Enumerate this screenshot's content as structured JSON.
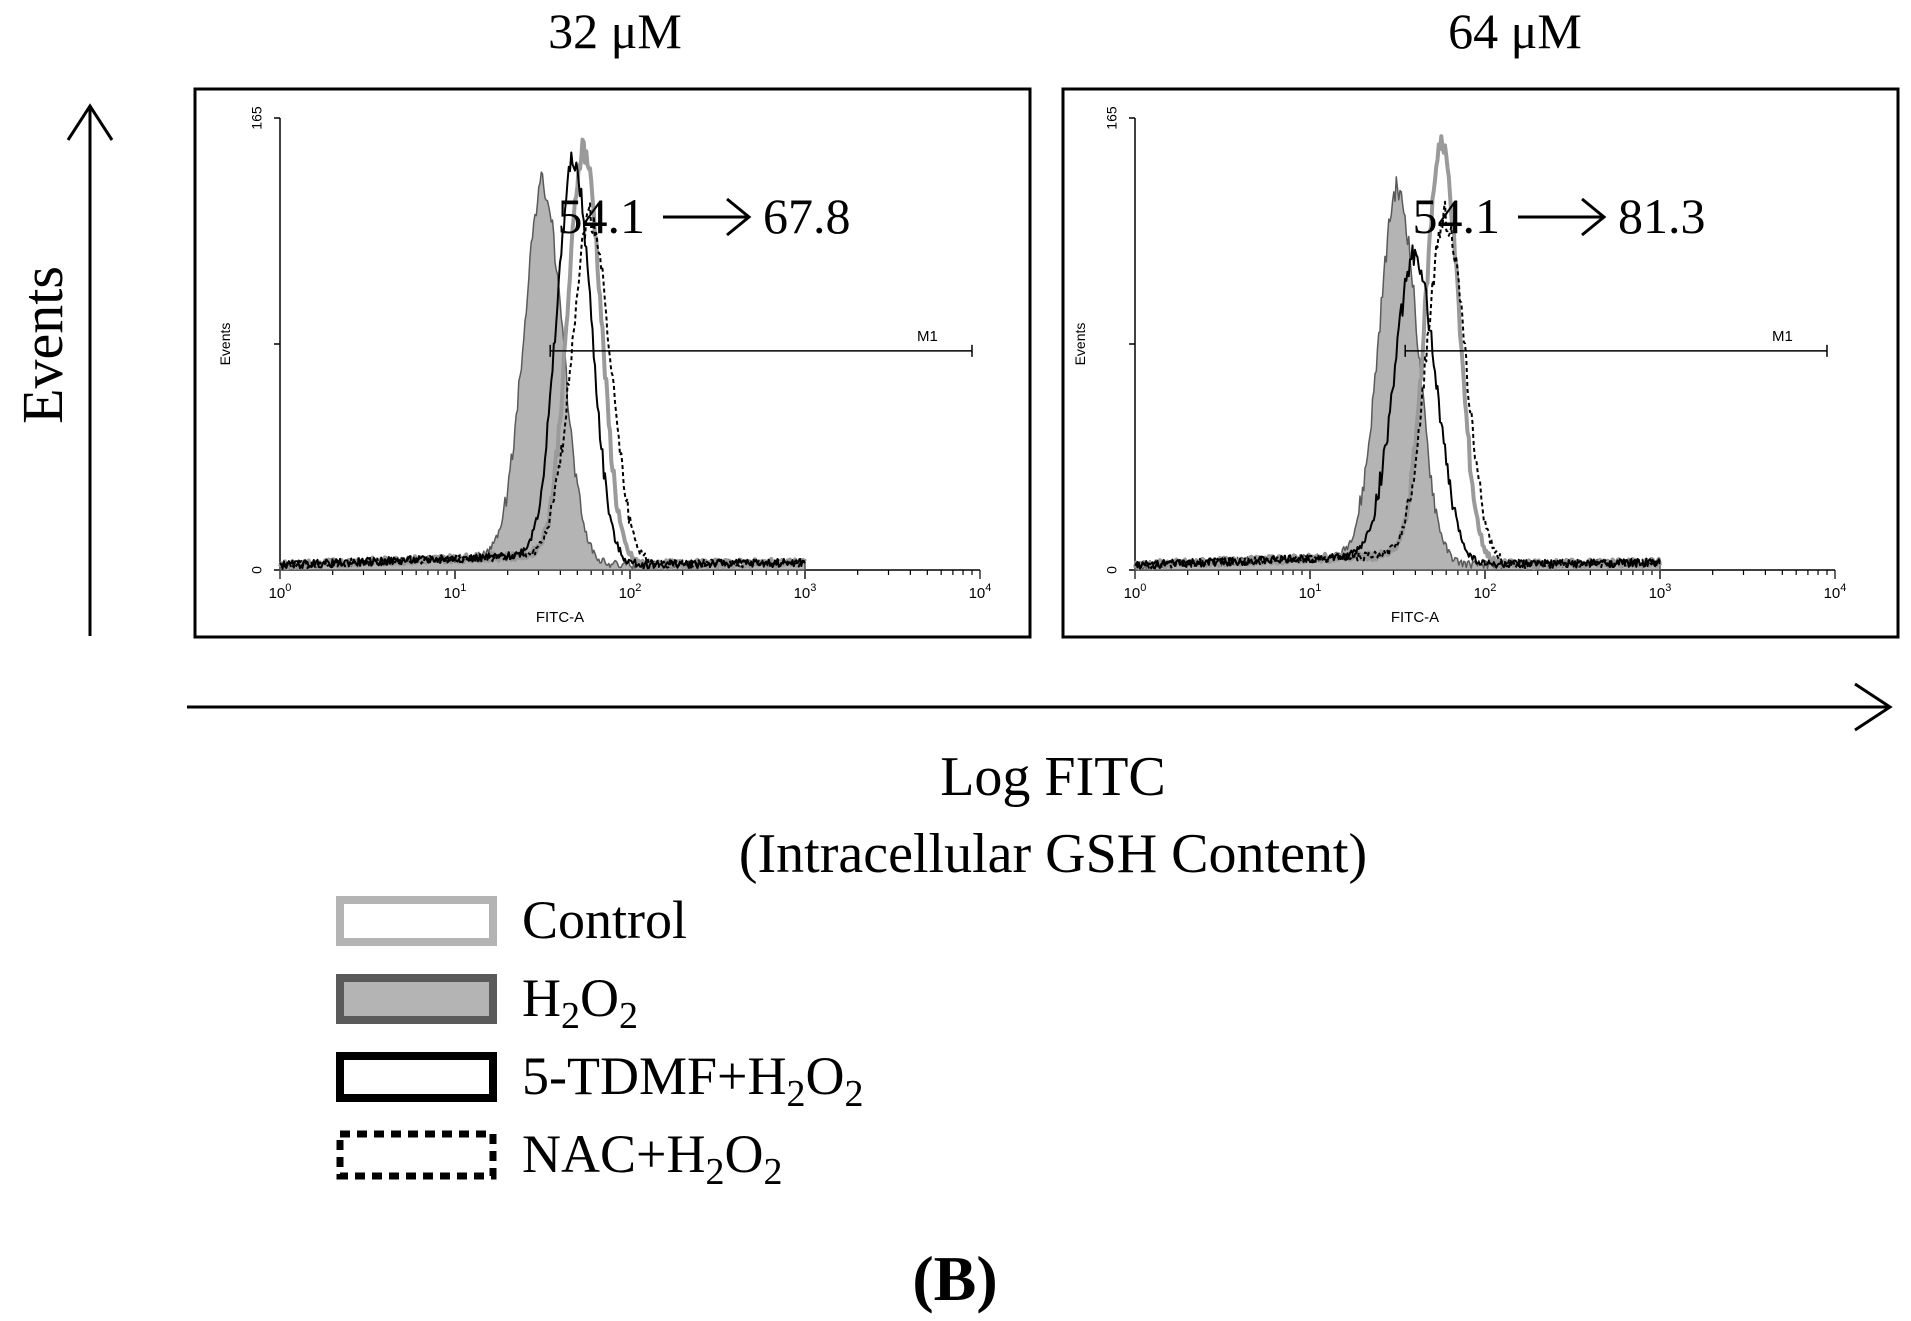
{
  "figure": {
    "panel_label": "(B)",
    "y_axis_label": "Events",
    "x_axis_label_line1": "Log FITC",
    "x_axis_label_line2": "(Intracellular GSH Content)"
  },
  "legend": [
    {
      "label": "Control",
      "fill": "#ffffff",
      "stroke": "#b4b4b4",
      "dash": false,
      "segments": [
        {
          "t": "Control",
          "sub": false
        }
      ]
    },
    {
      "label": "H2O2",
      "fill": "#b4b4b4",
      "stroke": "#5a5a5a",
      "dash": false,
      "segments": [
        {
          "t": "H",
          "sub": false
        },
        {
          "t": "2",
          "sub": true
        },
        {
          "t": "O",
          "sub": false
        },
        {
          "t": "2",
          "sub": true
        }
      ]
    },
    {
      "label": "5-TDMF+H2O2",
      "fill": "#ffffff",
      "stroke": "#000000",
      "dash": false,
      "segments": [
        {
          "t": "5-TDMF+H",
          "sub": false
        },
        {
          "t": "2",
          "sub": true
        },
        {
          "t": "O",
          "sub": false
        },
        {
          "t": "2",
          "sub": true
        }
      ]
    },
    {
      "label": "NAC+H2O2",
      "fill": "#ffffff",
      "stroke": "#000000",
      "dash": true,
      "segments": [
        {
          "t": "NAC+H",
          "sub": false
        },
        {
          "t": "2",
          "sub": true
        },
        {
          "t": "O",
          "sub": false
        },
        {
          "t": "2",
          "sub": true
        }
      ]
    }
  ],
  "chart_data": [
    {
      "type": "area",
      "title": "32 μM",
      "xlabel": "FITC-A",
      "ylabel": "Events",
      "x_scale": "log",
      "xlim": [
        1,
        10000
      ],
      "ylim": [
        0,
        165
      ],
      "x_ticks": [
        1,
        10,
        100,
        1000,
        10000
      ],
      "x_tick_labels": [
        [
          "10",
          "0"
        ],
        [
          "10",
          "1"
        ],
        [
          "10",
          "2"
        ],
        [
          "10",
          "3"
        ],
        [
          "10",
          "4"
        ]
      ],
      "y_ticks": [
        0,
        165
      ],
      "y_tick_labels": [
        "0",
        "165"
      ],
      "gate": {
        "label": "M1",
        "x_start": 35,
        "x_end": 9000,
        "y": 80
      },
      "annotation": {
        "from": "54.1",
        "to": "67.8"
      },
      "series": [
        {
          "name": "Control",
          "peak_x": 55,
          "peak_y": 150,
          "sigma_log10": 0.095,
          "baseline_y": 3,
          "fill": "none",
          "stroke": "#9a9a9a",
          "stroke_width": 4,
          "dash": null
        },
        {
          "name": "H2O2",
          "peak_x": 32,
          "peak_y": 137,
          "sigma_log10": 0.11,
          "baseline_y": 3,
          "fill": "#b4b4b4",
          "stroke": "#5a5a5a",
          "stroke_width": 1.5,
          "dash": null
        },
        {
          "name": "5-TDMF+H2O2",
          "peak_x": 48,
          "peak_y": 145,
          "sigma_log10": 0.1,
          "baseline_y": 3,
          "fill": "none",
          "stroke": "#000000",
          "stroke_width": 2,
          "dash": null
        },
        {
          "name": "NAC+H2O2",
          "peak_x": 60,
          "peak_y": 125,
          "sigma_log10": 0.11,
          "baseline_y": 3,
          "fill": "none",
          "stroke": "#000000",
          "stroke_width": 2,
          "dash": "4,3"
        }
      ]
    },
    {
      "type": "area",
      "title": "64 μM",
      "xlabel": "FITC-A",
      "ylabel": "Events",
      "x_scale": "log",
      "xlim": [
        1,
        10000
      ],
      "ylim": [
        0,
        165
      ],
      "x_ticks": [
        1,
        10,
        100,
        1000,
        10000
      ],
      "x_tick_labels": [
        [
          "10",
          "0"
        ],
        [
          "10",
          "1"
        ],
        [
          "10",
          "2"
        ],
        [
          "10",
          "3"
        ],
        [
          "10",
          "4"
        ]
      ],
      "y_ticks": [
        0,
        165
      ],
      "y_tick_labels": [
        "0",
        "165"
      ],
      "gate": {
        "label": "M1",
        "x_start": 35,
        "x_end": 9000,
        "y": 80
      },
      "annotation": {
        "from": "54.1",
        "to": "81.3"
      },
      "series": [
        {
          "name": "Control",
          "peak_x": 57,
          "peak_y": 152,
          "sigma_log10": 0.095,
          "baseline_y": 3,
          "fill": "none",
          "stroke": "#9a9a9a",
          "stroke_width": 4,
          "dash": null
        },
        {
          "name": "H2O2",
          "peak_x": 32,
          "peak_y": 135,
          "sigma_log10": 0.11,
          "baseline_y": 3,
          "fill": "#b4b4b4",
          "stroke": "#5a5a5a",
          "stroke_width": 1.5,
          "dash": null
        },
        {
          "name": "5-TDMF+H2O2",
          "peak_x": 40,
          "peak_y": 110,
          "sigma_log10": 0.12,
          "baseline_y": 3,
          "fill": "none",
          "stroke": "#000000",
          "stroke_width": 2,
          "dash": null
        },
        {
          "name": "NAC+H2O2",
          "peak_x": 60,
          "peak_y": 125,
          "sigma_log10": 0.11,
          "baseline_y": 3,
          "fill": "none",
          "stroke": "#000000",
          "stroke_width": 2,
          "dash": "4,3"
        }
      ]
    }
  ]
}
